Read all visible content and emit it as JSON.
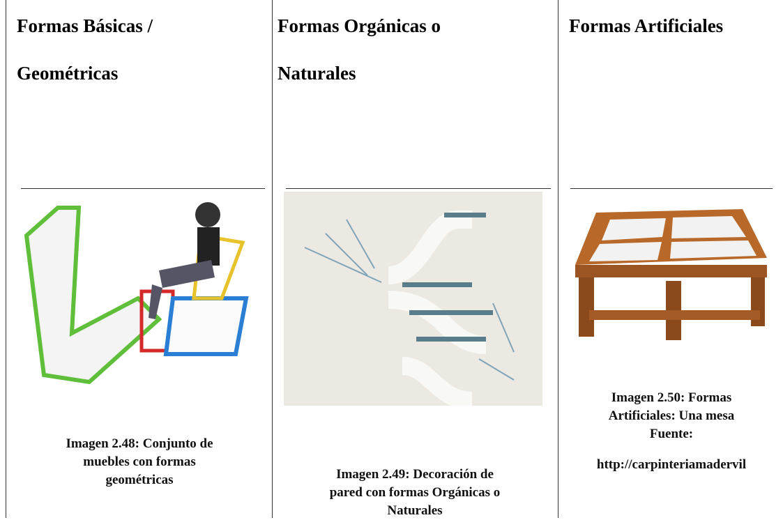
{
  "table": {
    "header": [
      [
        "Formas Básicas /",
        "Geométricas"
      ],
      [
        "Formas Orgánicas o",
        "Naturales"
      ],
      [
        "Formas Artificiales"
      ]
    ],
    "captions": [
      [
        "Imagen 2.48: Conjunto de",
        "muebles con formas",
        "geométricas"
      ],
      [
        "Imagen 2.49: Decoración de",
        "pared con formas Orgánicas o",
        "Naturales"
      ],
      [
        "Imagen 2.50: Formas",
        "Artificiales: Una mesa",
        "Fuente:",
        "http://carpinteriamadervil"
      ]
    ]
  }
}
